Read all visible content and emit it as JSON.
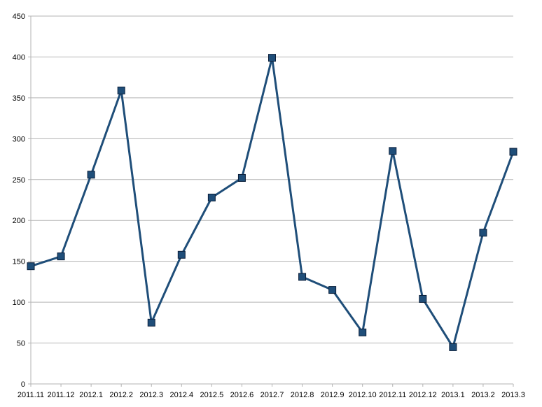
{
  "chart_data": {
    "type": "line",
    "title": "",
    "xlabel": "",
    "ylabel": "",
    "categories": [
      "2011.11",
      "2011.12",
      "2012.1",
      "2012.2",
      "2012.3",
      "2012.4",
      "2012.5",
      "2012.6",
      "2012.7",
      "2012.8",
      "2012.9",
      "2012.10",
      "2012.11",
      "2012.12",
      "2013.1",
      "2013.2",
      "2013.3"
    ],
    "series": [
      {
        "values": [
          144,
          156,
          256,
          359,
          75,
          158,
          228,
          252,
          399,
          131,
          115,
          63,
          285,
          104,
          45,
          185,
          284
        ]
      }
    ],
    "ylim": [
      0,
      450
    ],
    "yticks": [
      0,
      50,
      100,
      150,
      200,
      250,
      300,
      350,
      400,
      450
    ],
    "grid": true,
    "legend": "none",
    "marker": "square",
    "colors": {
      "line": "#1f4e79",
      "marker": "#1f4e79",
      "marker_edge": "#0b1f3a",
      "grid": "#b3b3b3"
    }
  }
}
